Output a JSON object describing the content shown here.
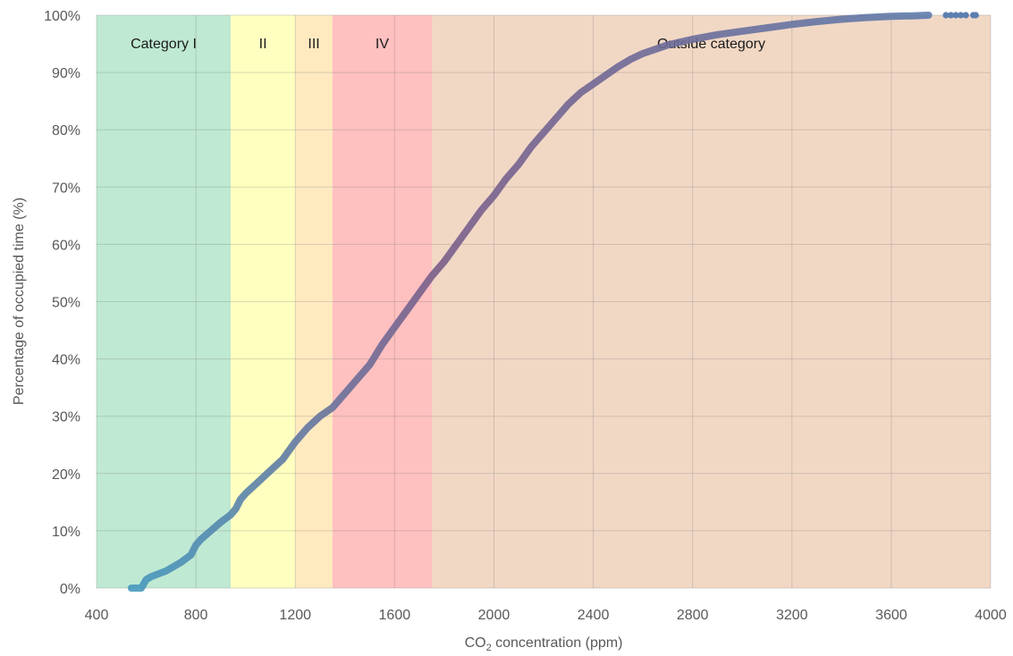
{
  "chart_data": {
    "type": "line",
    "title": "",
    "xlabel": "CO",
    "xlabel_sub": "2",
    "xlabel_rest": " concentration (ppm)",
    "ylabel": "Percentage of occupied time (%)",
    "xlim": [
      400,
      4000
    ],
    "ylim": [
      0,
      100
    ],
    "x_ticks": [
      400,
      800,
      1200,
      1600,
      2000,
      2400,
      2800,
      3200,
      3600,
      4000
    ],
    "x_tick_labels": [
      "400",
      "800",
      "1200",
      "1600",
      "2000",
      "2400",
      "2800",
      "3200",
      "3600",
      "4000"
    ],
    "y_ticks": [
      0,
      10,
      20,
      30,
      40,
      50,
      60,
      70,
      80,
      90,
      100
    ],
    "y_tick_labels": [
      "0%",
      "10%",
      "20%",
      "30%",
      "40%",
      "50%",
      "60%",
      "70%",
      "80%",
      "90%",
      "100%"
    ],
    "grid": true,
    "categories": [
      {
        "label": "Category I",
        "x_start": 400,
        "x_end": 940,
        "color": "#bfe9d2"
      },
      {
        "label": "II",
        "x_start": 940,
        "x_end": 1200,
        "color": "#ffffc0"
      },
      {
        "label": "III",
        "x_start": 1200,
        "x_end": 1350,
        "color": "#ffeac0"
      },
      {
        "label": "IV",
        "x_start": 1350,
        "x_end": 1750,
        "color": "#ffc0c0"
      },
      {
        "label": "Outside category",
        "x_start": 1750,
        "x_end": 4000,
        "color": "#f1d8c5"
      }
    ],
    "series": [
      {
        "color_start": "#3f9fc4",
        "color_mid": "#7a5e8a",
        "color_end": "#5b7fb0",
        "x": [
          540,
          580,
          600,
          620,
          680,
          740,
          780,
          800,
          820,
          860,
          900,
          940,
          960,
          980,
          1000,
          1050,
          1100,
          1150,
          1200,
          1250,
          1300,
          1350,
          1380,
          1400,
          1450,
          1500,
          1550,
          1600,
          1650,
          1700,
          1750,
          1800,
          1850,
          1900,
          1950,
          2000,
          2050,
          2100,
          2150,
          2200,
          2250,
          2300,
          2350,
          2400,
          2450,
          2500,
          2550,
          2600,
          2700,
          2800,
          2900,
          3000,
          3100,
          3200,
          3300,
          3400,
          3500,
          3600,
          3700,
          3750
        ],
        "y": [
          0,
          0,
          1.5,
          2,
          3,
          4.5,
          5.8,
          7.5,
          8.5,
          10,
          11.5,
          12.8,
          13.8,
          15.5,
          16.5,
          18.5,
          20.5,
          22.5,
          25.5,
          28,
          30,
          31.5,
          33,
          34,
          36.5,
          39,
          42.5,
          45.5,
          48.5,
          51.5,
          54.5,
          57,
          60,
          63,
          66,
          68.5,
          71.5,
          74,
          77,
          79.5,
          82,
          84.5,
          86.5,
          88,
          89.5,
          91,
          92.3,
          93.3,
          94.8,
          95.8,
          96.6,
          97.2,
          97.8,
          98.4,
          98.9,
          99.3,
          99.6,
          99.8,
          99.9,
          100
        ]
      },
      {
        "outliers_x": [
          3820,
          3840,
          3860,
          3880,
          3900,
          3930,
          3940
        ],
        "outliers_y": [
          100,
          100,
          100,
          100,
          100,
          100,
          100
        ]
      }
    ]
  }
}
